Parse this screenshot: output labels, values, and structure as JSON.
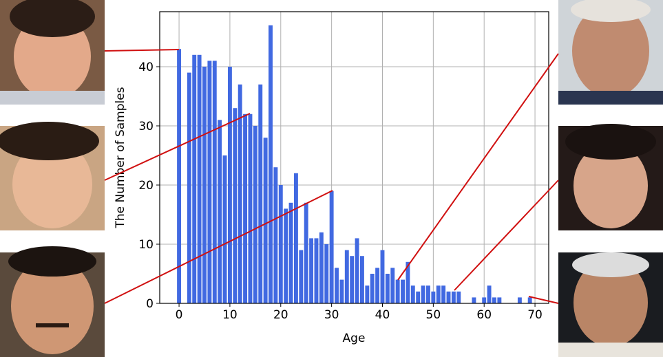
{
  "chart_data": {
    "type": "histogram",
    "x_label": "Age",
    "y_label": "The Number of Samples",
    "bins": [
      -0.5,
      0.5,
      1.5,
      2.5,
      3.5,
      4.5,
      5.5,
      6.5,
      7.5,
      8.5,
      9.5,
      10.5,
      11.5,
      12.5,
      13.5,
      14.5,
      15.5,
      16.5,
      17.5,
      18.5,
      19.5,
      20.5,
      21.5,
      22.5,
      23.5,
      24.5,
      25.5,
      26.5,
      27.5,
      28.5,
      29.5,
      30.5,
      31.5,
      32.5,
      33.5,
      34.5,
      35.5,
      36.5,
      37.5,
      38.5,
      39.5,
      40.5,
      41.5,
      42.5,
      43.5,
      44.5,
      45.5,
      46.5,
      47.5,
      48.5,
      49.5,
      50.5,
      51.5,
      52.5,
      53.5,
      54.5,
      55.5,
      56.5,
      57.5,
      58.5,
      59.5,
      60.5,
      61.5,
      62.5,
      63.5,
      64.5,
      65.5,
      66.5,
      67.5,
      68.5,
      69.5
    ],
    "values": [
      43,
      0,
      39,
      42,
      42,
      40,
      41,
      41,
      31,
      25,
      40,
      33,
      37,
      32,
      32,
      30,
      37,
      28,
      47,
      23,
      20,
      16,
      17,
      22,
      9,
      17,
      11,
      11,
      12,
      10,
      19,
      6,
      4,
      9,
      8,
      11,
      8,
      3,
      5,
      6,
      9,
      5,
      6,
      4,
      4,
      7,
      3,
      2,
      3,
      3,
      2,
      3,
      3,
      2,
      2,
      2,
      0,
      0,
      1,
      0,
      1,
      3,
      1,
      1,
      0,
      0,
      0,
      1,
      0,
      1
    ],
    "color": "#4169e1",
    "xlim": [
      -3.8,
      72.7
    ],
    "xticks": [
      0,
      10,
      20,
      30,
      40,
      50,
      60,
      70
    ],
    "ylim": [
      0,
      49.3
    ],
    "yticks": [
      0,
      10,
      20,
      30,
      40
    ],
    "grid": true
  }
}
